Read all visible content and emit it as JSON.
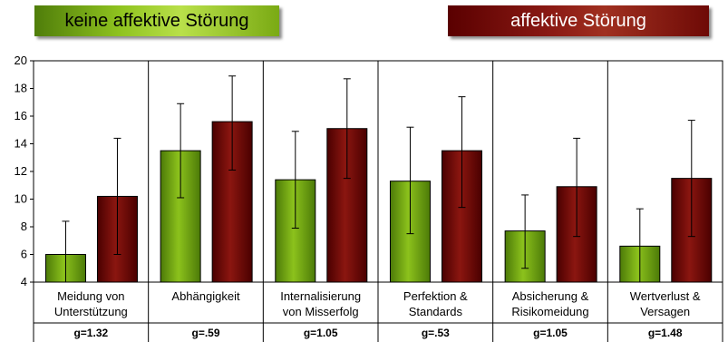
{
  "legend": {
    "green_label": "keine affektive Störung",
    "red_label": "affektive Störung"
  },
  "colors": {
    "green": "#8cc21c",
    "green_dark": "#4c7a08",
    "red": "#8b1610",
    "red_dark": "#4a0000"
  },
  "chart_data": {
    "type": "bar",
    "categories": [
      [
        "Meidung von",
        "Unterstützung"
      ],
      [
        "Abhängigkeit"
      ],
      [
        "Internalisierung",
        "von Misserfolg"
      ],
      [
        "Perfektion &",
        "Standards"
      ],
      [
        "Absicherung &",
        "Risikomeidung"
      ],
      [
        "Wertverlust &",
        "Versagen"
      ]
    ],
    "effect_sizes": [
      "g=1.32",
      "g=.59",
      "g=1.05",
      "g=.53",
      "g=1.05",
      "g=1.48"
    ],
    "series": [
      {
        "name": "keine affektive Störung",
        "values": [
          6.0,
          13.5,
          11.4,
          11.3,
          7.7,
          6.6
        ],
        "error_upper": [
          8.4,
          16.9,
          14.9,
          15.2,
          10.3,
          9.3
        ],
        "error_lower": [
          4.0,
          10.1,
          7.9,
          7.5,
          5.0,
          4.0
        ]
      },
      {
        "name": "affektive Störung",
        "values": [
          10.2,
          15.6,
          15.1,
          13.5,
          10.9,
          11.5
        ],
        "error_upper": [
          14.4,
          18.9,
          18.7,
          17.4,
          14.4,
          15.7
        ],
        "error_lower": [
          6.0,
          12.1,
          11.5,
          9.4,
          7.3,
          7.3
        ]
      }
    ],
    "ylim": [
      4,
      20
    ],
    "yticks": [
      4,
      6,
      8,
      10,
      12,
      14,
      16,
      18,
      20
    ],
    "grid": false
  }
}
